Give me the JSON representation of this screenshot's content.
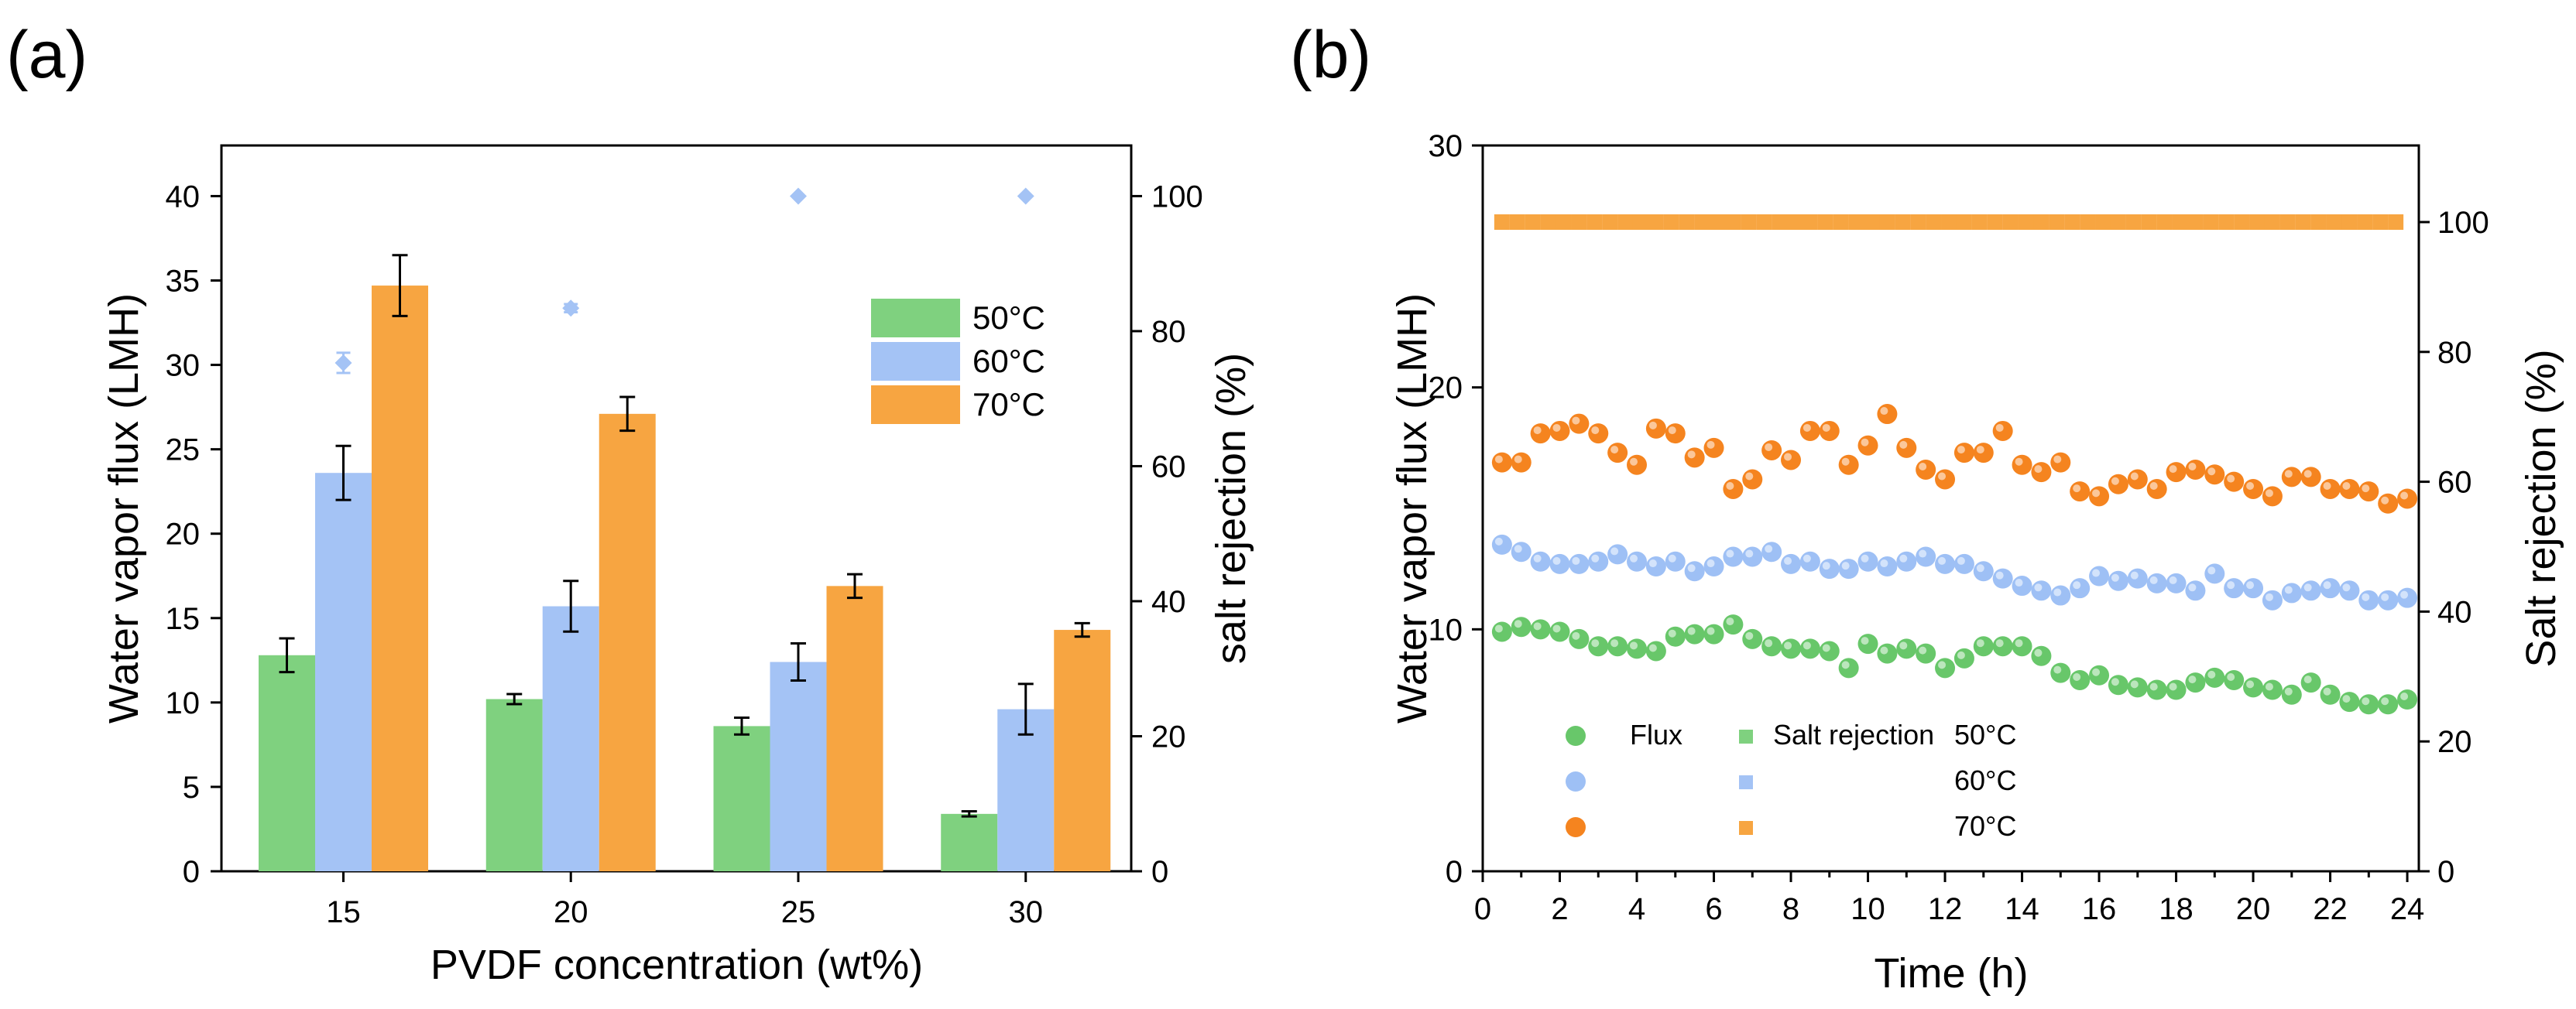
{
  "colors": {
    "c50": "#7fd17f",
    "c60": "#a4c3f5",
    "c70": "#f7a541",
    "c50_marker": "#68c76a",
    "c60_marker": "#9ec0f5",
    "c70_marker": "#f5841f",
    "err": "#000000"
  },
  "chart_data": [
    {
      "panel_label": "(a)",
      "type": "bar",
      "xlabel": "PVDF concentration (wt%)",
      "ylabel": "Water vapor flux (LMH)",
      "y2label": "salt rejection (%)",
      "categories": [
        "15",
        "20",
        "25",
        "30"
      ],
      "ylim": [
        0,
        43
      ],
      "y2lim": [
        0,
        107.5
      ],
      "yticks": [
        0,
        5,
        10,
        15,
        20,
        25,
        30,
        35,
        40
      ],
      "y2ticks": [
        0,
        20,
        40,
        60,
        80,
        100
      ],
      "legend_position": "top-right",
      "series": [
        {
          "name": "50°C",
          "color_key": "c50",
          "values": [
            12.8,
            10.2,
            8.6,
            3.4
          ],
          "errors": [
            1.0,
            0.3,
            0.5,
            0.15
          ]
        },
        {
          "name": "60°C",
          "color_key": "c60",
          "values": [
            23.6,
            15.7,
            12.4,
            9.6
          ],
          "errors": [
            1.6,
            1.5,
            1.1,
            1.5
          ]
        },
        {
          "name": "70°C",
          "color_key": "c70",
          "values": [
            34.7,
            27.1,
            16.9,
            14.3
          ],
          "errors": [
            1.8,
            1.0,
            0.7,
            0.4
          ]
        }
      ],
      "rejection_series": {
        "name": "salt rejection 60°C",
        "color_key": "c60",
        "values": [
          75.3,
          83.4,
          100,
          100
        ],
        "errors": [
          1.5,
          0.6,
          0,
          0
        ]
      }
    },
    {
      "panel_label": "(b)",
      "type": "scatter",
      "xlabel": "Time (h)",
      "ylabel": "Water vapor flux (LMH)",
      "y2label": "Salt rejection (%)",
      "xlim": [
        0,
        24.3
      ],
      "ylim": [
        0,
        30
      ],
      "y2lim": [
        0,
        111.8
      ],
      "xticks": [
        0,
        2,
        4,
        6,
        8,
        10,
        12,
        14,
        16,
        18,
        20,
        22,
        24
      ],
      "yticks": [
        0,
        10,
        20,
        30
      ],
      "y2ticks": [
        0,
        20,
        40,
        60,
        80,
        100
      ],
      "legend": {
        "flux_label": "Flux",
        "rejection_label": "Salt rejection",
        "entries": [
          "50°C",
          "60°C",
          "70°C"
        ]
      },
      "flux_x": [
        0.5,
        1.0,
        1.5,
        2.0,
        2.5,
        3.0,
        3.5,
        4.0,
        4.5,
        5.0,
        5.5,
        6.0,
        6.5,
        7.0,
        7.5,
        8.0,
        8.5,
        9.0,
        9.5,
        10.0,
        10.5,
        11.0,
        11.5,
        12.0,
        12.5,
        13.0,
        13.5,
        14.0,
        14.5,
        15.0,
        15.5,
        16.0,
        16.5,
        17.0,
        17.5,
        18.0,
        18.5,
        19.0,
        19.5,
        20.0,
        20.5,
        21.0,
        21.5,
        22.0,
        22.5,
        23.0,
        23.5,
        24.0
      ],
      "flux_series": [
        {
          "name": "50°C",
          "color_key": "c50_marker",
          "values": [
            9.9,
            10.1,
            10.0,
            9.9,
            9.6,
            9.3,
            9.3,
            9.2,
            9.1,
            9.7,
            9.8,
            9.8,
            10.2,
            9.6,
            9.3,
            9.2,
            9.2,
            9.1,
            8.4,
            9.4,
            9.0,
            9.2,
            9.0,
            8.4,
            8.8,
            9.3,
            9.3,
            9.3,
            8.9,
            8.2,
            7.9,
            8.1,
            7.7,
            7.6,
            7.5,
            7.5,
            7.8,
            8.0,
            7.9,
            7.6,
            7.5,
            7.3,
            7.8,
            7.3,
            7.0,
            6.9,
            6.9,
            7.1
          ]
        },
        {
          "name": "60°C",
          "color_key": "c60_marker",
          "values": [
            13.5,
            13.2,
            12.8,
            12.7,
            12.7,
            12.8,
            13.1,
            12.8,
            12.6,
            12.8,
            12.4,
            12.6,
            13.0,
            13.0,
            13.2,
            12.7,
            12.8,
            12.5,
            12.5,
            12.8,
            12.6,
            12.8,
            13.0,
            12.7,
            12.7,
            12.4,
            12.1,
            11.8,
            11.6,
            11.4,
            11.7,
            12.2,
            12.0,
            12.1,
            11.9,
            11.9,
            11.6,
            12.3,
            11.7,
            11.7,
            11.2,
            11.5,
            11.6,
            11.7,
            11.6,
            11.2,
            11.2,
            11.3
          ]
        },
        {
          "name": "70°C",
          "color_key": "c70_marker",
          "values": [
            16.9,
            16.9,
            18.1,
            18.2,
            18.5,
            18.1,
            17.3,
            16.8,
            18.3,
            18.1,
            17.1,
            17.5,
            15.8,
            16.2,
            17.4,
            17.0,
            18.2,
            18.2,
            16.8,
            17.6,
            18.9,
            17.5,
            16.6,
            16.2,
            17.3,
            17.3,
            18.2,
            16.8,
            16.5,
            16.9,
            15.7,
            15.5,
            16.0,
            16.2,
            15.8,
            16.5,
            16.6,
            16.4,
            16.1,
            15.8,
            15.5,
            16.3,
            16.3,
            15.8,
            15.8,
            15.7,
            15.2,
            15.4
          ]
        }
      ],
      "rejection_series": [
        {
          "name": "70°C",
          "color_key": "c70",
          "x_start": 0.5,
          "x_step": 0.4,
          "count": 59,
          "value": 100
        }
      ]
    }
  ]
}
